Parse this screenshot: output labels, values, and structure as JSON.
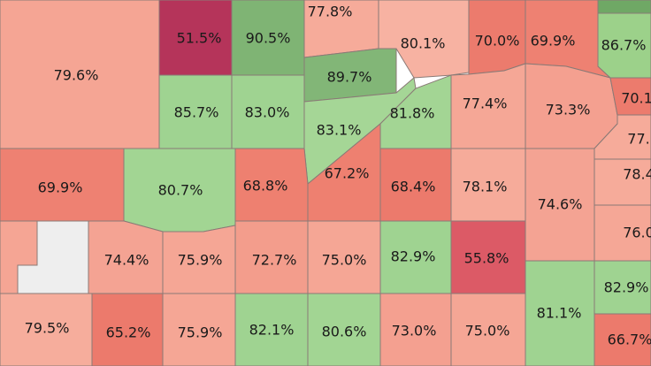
{
  "regions": [
    {
      "label": "79.6%",
      "color": "#f5a594"
    },
    {
      "label": "51.5%",
      "color": "#b5345a"
    },
    {
      "label": "90.5%",
      "color": "#7fb474"
    },
    {
      "label": "77.8%",
      "color": "#f6ab9a"
    },
    {
      "label": "80.1%",
      "color": "#f7b2a2"
    },
    {
      "label": "70.0%",
      "color": "#ec7b6d"
    },
    {
      "label": "69.9%",
      "color": "#ee8172"
    },
    {
      "label": "86.7%",
      "color": "#9cd18a"
    },
    {
      "label": "89.7%",
      "color": "#82b677"
    },
    {
      "label": "85.7%",
      "color": "#9fd391"
    },
    {
      "label": "83.0%",
      "color": "#9fd391"
    },
    {
      "label": "83.1%",
      "color": "#a5d696"
    },
    {
      "label": "81.8%",
      "color": "#a3d594"
    },
    {
      "label": "77.4%",
      "color": "#f5a796"
    },
    {
      "label": "73.3%",
      "color": "#f4a090"
    },
    {
      "label": "70.1",
      "color": "#ec7b6d"
    },
    {
      "label": "77.",
      "color": "#f6ab9a"
    },
    {
      "label": "69.9%",
      "color": "#ee8172"
    },
    {
      "label": "80.7%",
      "color": "#a2d593"
    },
    {
      "label": "68.8%",
      "color": "#ee8070"
    },
    {
      "label": "67.2%",
      "color": "#ee8070"
    },
    {
      "label": "68.4%",
      "color": "#ec7a6c"
    },
    {
      "label": "78.1%",
      "color": "#f6ab9a"
    },
    {
      "label": "74.6%",
      "color": "#f4a393"
    },
    {
      "label": "78.4",
      "color": "#f6ab9a"
    },
    {
      "label": "76.0",
      "color": "#f5a796"
    },
    {
      "label": "74.4%",
      "color": "#f4a393"
    },
    {
      "label": "75.9%",
      "color": "#f5a695"
    },
    {
      "label": "72.7%",
      "color": "#f39d8c"
    },
    {
      "label": "75.0%",
      "color": "#f5a695"
    },
    {
      "label": "82.9%",
      "color": "#9fd391"
    },
    {
      "label": "55.8%",
      "color": "#dc5a66"
    },
    {
      "label": "82.9%",
      "color": "#9fd391"
    },
    {
      "label": "79.5%",
      "color": "#f6ad9c"
    },
    {
      "label": "65.2%",
      "color": "#ec7a6c"
    },
    {
      "label": "75.9%",
      "color": "#f5a695"
    },
    {
      "label": "82.1%",
      "color": "#9fd391"
    },
    {
      "label": "80.6%",
      "color": "#a2d593"
    },
    {
      "label": "73.0%",
      "color": "#f4a090"
    },
    {
      "label": "75.0%",
      "color": "#f5a695"
    },
    {
      "label": "81.1%",
      "color": "#9fd391"
    },
    {
      "label": "66.7%",
      "color": "#ec7a6c"
    }
  ]
}
